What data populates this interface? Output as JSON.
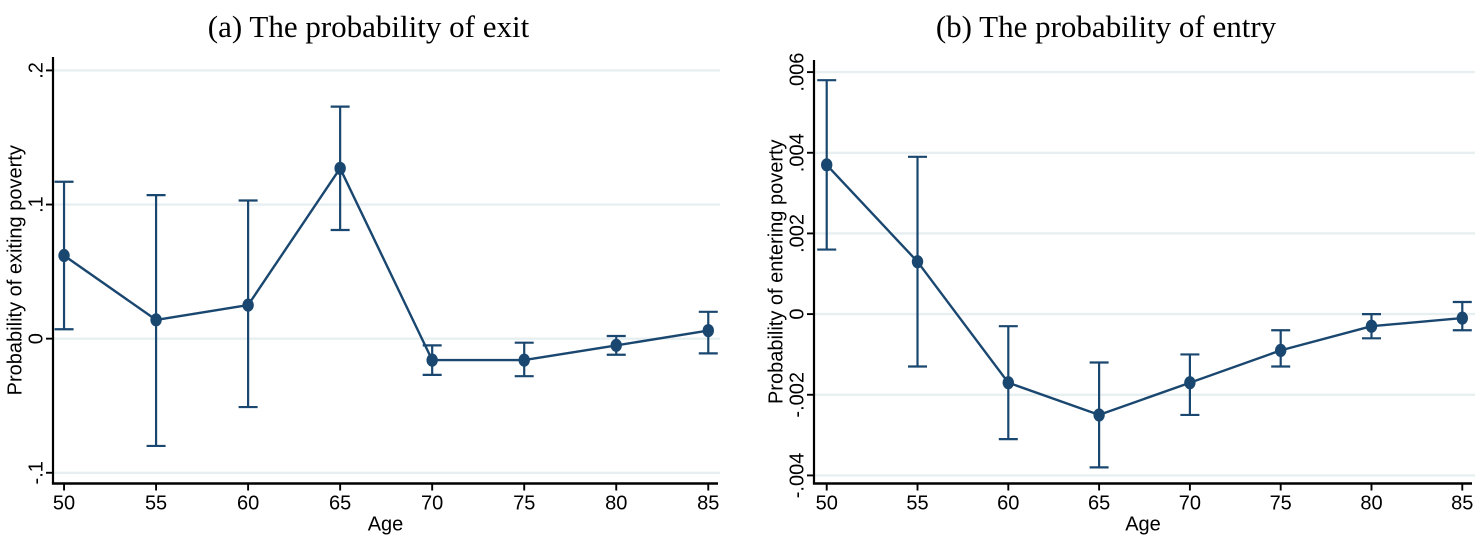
{
  "figure": {
    "background": "#ffffff",
    "accent_color": "#1a476f",
    "gridline_color": "#e7eff1",
    "axis_color": "#000000",
    "text_color": "#000000"
  },
  "chart_data": [
    {
      "type": "line",
      "title": "(a) The probability of exit",
      "xlabel": "Age",
      "ylabel": "Probability of exiting poverty",
      "x": [
        50,
        55,
        60,
        65,
        70,
        75,
        80,
        85
      ],
      "series": [
        {
          "name": "estimate",
          "values": [
            0.062,
            0.014,
            0.025,
            0.127,
            -0.016,
            -0.016,
            -0.005,
            0.006
          ]
        },
        {
          "name": "ci_lower",
          "values": [
            0.007,
            -0.08,
            -0.051,
            0.081,
            -0.027,
            -0.028,
            -0.012,
            -0.011
          ]
        },
        {
          "name": "ci_upper",
          "values": [
            0.117,
            0.107,
            0.103,
            0.173,
            -0.005,
            -0.003,
            0.002,
            0.02
          ]
        }
      ],
      "x_ticks": [
        {
          "value": 50,
          "label": "50"
        },
        {
          "value": 55,
          "label": "55"
        },
        {
          "value": 60,
          "label": "60"
        },
        {
          "value": 65,
          "label": "65"
        },
        {
          "value": 70,
          "label": "70"
        },
        {
          "value": 75,
          "label": "75"
        },
        {
          "value": 80,
          "label": "80"
        },
        {
          "value": 85,
          "label": "85"
        }
      ],
      "y_ticks": [
        {
          "value": 0.2,
          "label": ".2"
        },
        {
          "value": 0.1,
          "label": ".1"
        },
        {
          "value": 0.0,
          "label": "0"
        },
        {
          "value": -0.1,
          "label": "-.1"
        }
      ],
      "xlim": [
        49.4,
        85.8
      ],
      "ylim": [
        -0.108,
        0.21
      ],
      "grid": true,
      "legend": false,
      "marker": "circle",
      "error_bars": true
    },
    {
      "type": "line",
      "title": "(b) The probability of entry",
      "xlabel": "Age",
      "ylabel": "Probability of entering poverty",
      "x": [
        50,
        55,
        60,
        65,
        70,
        75,
        80,
        85
      ],
      "series": [
        {
          "name": "estimate",
          "values": [
            0.0037,
            0.0013,
            -0.0017,
            -0.0025,
            -0.0017,
            -0.0009,
            -0.0003,
            -0.0001
          ]
        },
        {
          "name": "ci_lower",
          "values": [
            0.0016,
            -0.0013,
            -0.0031,
            -0.0038,
            -0.0025,
            -0.0013,
            -0.0006,
            -0.0004
          ]
        },
        {
          "name": "ci_upper",
          "values": [
            0.0058,
            0.0039,
            -0.0003,
            -0.0012,
            -0.001,
            -0.0004,
            0.0,
            0.0003
          ]
        }
      ],
      "x_ticks": [
        {
          "value": 50,
          "label": "50"
        },
        {
          "value": 55,
          "label": "55"
        },
        {
          "value": 60,
          "label": "60"
        },
        {
          "value": 65,
          "label": "65"
        },
        {
          "value": 70,
          "label": "70"
        },
        {
          "value": 75,
          "label": "75"
        },
        {
          "value": 80,
          "label": "80"
        },
        {
          "value": 85,
          "label": "85"
        }
      ],
      "y_ticks": [
        {
          "value": 0.006,
          "label": ".006"
        },
        {
          "value": 0.004,
          "label": ".004"
        },
        {
          "value": 0.002,
          "label": ".002"
        },
        {
          "value": 0.0,
          "label": "0"
        },
        {
          "value": -0.002,
          "label": "-.002"
        },
        {
          "value": -0.004,
          "label": "-.004"
        }
      ],
      "xlim": [
        49.3,
        85.7
      ],
      "ylim": [
        -0.0042,
        0.0063
      ],
      "grid": true,
      "legend": false,
      "marker": "circle",
      "error_bars": true
    }
  ]
}
